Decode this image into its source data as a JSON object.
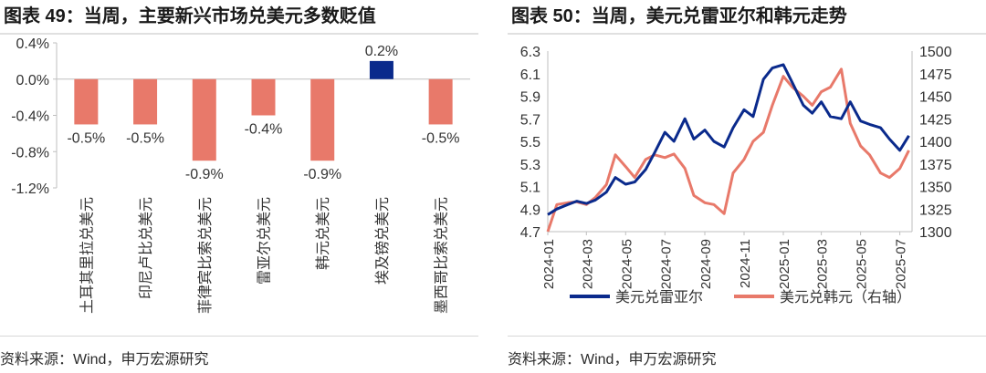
{
  "left_panel": {
    "title": "图表 49：当周，主要新兴市场兑美元多数贬值",
    "source": "资料来源：Wind，申万宏源研究"
  },
  "right_panel": {
    "title": "图表 50：当周，美元兑雷亚尔和韩元走势",
    "source": "资料来源：Wind，申万宏源研究"
  },
  "colors": {
    "salmon": "#E8796A",
    "navy": "#0A2A8C",
    "axis": "#BFBFBF",
    "text": "#333333"
  },
  "chart_data": [
    {
      "type": "bar",
      "categories": [
        "土耳其里拉兑美元",
        "印尼卢比兑美元",
        "菲律宾比索兑美元",
        "雷亚尔兑美元",
        "韩元兑美元",
        "埃及镑兑美元",
        "墨西哥比索兑美元"
      ],
      "values": [
        -0.5,
        -0.5,
        -0.9,
        -0.4,
        -0.9,
        0.2,
        -0.5
      ],
      "data_labels": [
        "-0.5%",
        "-0.5%",
        "-0.9%",
        "-0.4%",
        "-0.9%",
        "0.2%",
        "-0.5%"
      ],
      "ylim": [
        -1.2,
        0.4
      ],
      "yticks": [
        "0.4%",
        "0.0%",
        "-0.4%",
        "-0.8%",
        "-1.2%"
      ],
      "bar_colors": [
        "#E8796A",
        "#E8796A",
        "#E8796A",
        "#E8796A",
        "#E8796A",
        "#0A2A8C",
        "#E8796A"
      ],
      "grid": false
    },
    {
      "type": "line",
      "x_ticks": [
        "2024-01",
        "2024-03",
        "2024-05",
        "2024-07",
        "2024-09",
        "2024-11",
        "2025-01",
        "2025-03",
        "2025-05",
        "2025-07"
      ],
      "x_range": [
        "2024-01",
        "2025-07"
      ],
      "y_left": {
        "range": [
          4.7,
          6.3
        ],
        "ticks": [
          "6.3",
          "6.1",
          "5.9",
          "5.7",
          "5.5",
          "5.3",
          "5.1",
          "4.9",
          "4.7"
        ]
      },
      "y_right": {
        "range": [
          1300,
          1500
        ],
        "ticks": [
          "1500",
          "1475",
          "1450",
          "1425",
          "1400",
          "1375",
          "1350",
          "1325",
          "1300"
        ]
      },
      "series": [
        {
          "name": "美元兑雷亚尔",
          "axis": "left",
          "color": "#0A2A8C",
          "points": [
            [
              "2024-01-01",
              4.85
            ],
            [
              "2024-01-15",
              4.9
            ],
            [
              "2024-02-01",
              4.94
            ],
            [
              "2024-02-15",
              4.97
            ],
            [
              "2024-03-01",
              4.95
            ],
            [
              "2024-03-15",
              4.98
            ],
            [
              "2024-04-01",
              5.05
            ],
            [
              "2024-04-15",
              5.18
            ],
            [
              "2024-05-01",
              5.12
            ],
            [
              "2024-05-15",
              5.14
            ],
            [
              "2024-06-01",
              5.25
            ],
            [
              "2024-06-15",
              5.4
            ],
            [
              "2024-07-01",
              5.58
            ],
            [
              "2024-07-15",
              5.5
            ],
            [
              "2024-08-01",
              5.7
            ],
            [
              "2024-08-15",
              5.52
            ],
            [
              "2024-09-01",
              5.6
            ],
            [
              "2024-09-15",
              5.5
            ],
            [
              "2024-10-01",
              5.45
            ],
            [
              "2024-10-15",
              5.62
            ],
            [
              "2024-11-01",
              5.78
            ],
            [
              "2024-11-15",
              5.72
            ],
            [
              "2024-12-01",
              6.05
            ],
            [
              "2024-12-15",
              6.15
            ],
            [
              "2025-01-01",
              6.18
            ],
            [
              "2025-01-15",
              6.02
            ],
            [
              "2025-02-01",
              5.82
            ],
            [
              "2025-02-15",
              5.75
            ],
            [
              "2025-03-01",
              5.85
            ],
            [
              "2025-03-15",
              5.72
            ],
            [
              "2025-04-01",
              5.7
            ],
            [
              "2025-04-15",
              5.85
            ],
            [
              "2025-05-01",
              5.68
            ],
            [
              "2025-05-15",
              5.65
            ],
            [
              "2025-06-01",
              5.62
            ],
            [
              "2025-06-15",
              5.52
            ],
            [
              "2025-07-01",
              5.42
            ],
            [
              "2025-07-15",
              5.55
            ]
          ]
        },
        {
          "name": "美元兑韩元（右轴）",
          "axis": "right",
          "color": "#E8796A",
          "points": [
            [
              "2024-01-01",
              1300
            ],
            [
              "2024-01-15",
              1330
            ],
            [
              "2024-02-01",
              1332
            ],
            [
              "2024-02-15",
              1333
            ],
            [
              "2024-03-01",
              1330
            ],
            [
              "2024-03-15",
              1338
            ],
            [
              "2024-04-01",
              1352
            ],
            [
              "2024-04-15",
              1385
            ],
            [
              "2024-05-01",
              1372
            ],
            [
              "2024-05-15",
              1360
            ],
            [
              "2024-06-01",
              1380
            ],
            [
              "2024-06-15",
              1385
            ],
            [
              "2024-07-01",
              1382
            ],
            [
              "2024-07-15",
              1386
            ],
            [
              "2024-08-01",
              1370
            ],
            [
              "2024-08-15",
              1340
            ],
            [
              "2024-09-01",
              1332
            ],
            [
              "2024-09-15",
              1330
            ],
            [
              "2024-10-01",
              1320
            ],
            [
              "2024-10-15",
              1365
            ],
            [
              "2024-11-01",
              1380
            ],
            [
              "2024-11-15",
              1400
            ],
            [
              "2024-12-01",
              1410
            ],
            [
              "2024-12-15",
              1440
            ],
            [
              "2025-01-01",
              1472
            ],
            [
              "2025-01-15",
              1460
            ],
            [
              "2025-02-01",
              1450
            ],
            [
              "2025-02-15",
              1440
            ],
            [
              "2025-03-01",
              1455
            ],
            [
              "2025-03-15",
              1460
            ],
            [
              "2025-04-01",
              1480
            ],
            [
              "2025-04-15",
              1420
            ],
            [
              "2025-05-01",
              1395
            ],
            [
              "2025-05-15",
              1385
            ],
            [
              "2025-06-01",
              1365
            ],
            [
              "2025-06-15",
              1360
            ],
            [
              "2025-07-01",
              1370
            ],
            [
              "2025-07-15",
              1390
            ]
          ]
        }
      ],
      "legend_position": "bottom",
      "grid": false
    }
  ]
}
